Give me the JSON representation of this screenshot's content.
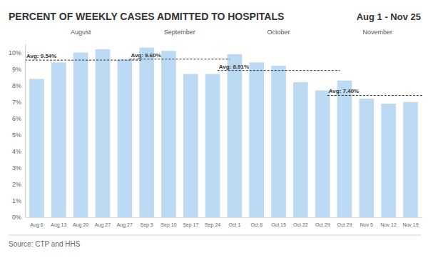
{
  "chart_data": {
    "type": "bar",
    "title": "PERCENT OF WEEKLY CASES ADMITTED TO HOSPITALS",
    "subtitle": "Aug 1 - Nov 25",
    "source": "Source: CTP and HHS",
    "color": "#bcdaf3",
    "grid": false,
    "ylim": [
      0,
      10.5
    ],
    "yticks": [
      {
        "value": 0,
        "label": "0%"
      },
      {
        "value": 1,
        "label": "1%"
      },
      {
        "value": 2,
        "label": "2%"
      },
      {
        "value": 3,
        "label": "3%"
      },
      {
        "value": 4,
        "label": "4%"
      },
      {
        "value": 5,
        "label": "5%"
      },
      {
        "value": 6,
        "label": "6%"
      },
      {
        "value": 7,
        "label": "7%"
      },
      {
        "value": 8,
        "label": "8%"
      },
      {
        "value": 9,
        "label": "9%"
      },
      {
        "value": 10,
        "label": "10%"
      }
    ],
    "groups": [
      {
        "name": "August",
        "average": 9.54,
        "average_label": "Avg: 9.54%",
        "categories": [
          "Aug 6",
          "Aug 13",
          "Aug 20",
          "Aug 27",
          "Aug 27"
        ],
        "values": [
          8.4,
          9.4,
          10.0,
          10.2,
          9.6
        ]
      },
      {
        "name": "September",
        "average": 9.6,
        "average_label": "Avg: 9.60%",
        "categories": [
          "Sep 3",
          "Sep 10",
          "Sep 17",
          "Sep 24"
        ],
        "values": [
          10.3,
          10.1,
          8.7,
          8.7
        ]
      },
      {
        "name": "October",
        "average": 8.91,
        "average_label": "Avg: 8.91%",
        "categories": [
          "Oct 1",
          "Oct 8",
          "Oct 15",
          "Oct 22",
          "Oct 29"
        ],
        "values": [
          9.9,
          9.4,
          9.2,
          8.2,
          7.7
        ]
      },
      {
        "name": "November",
        "average": 7.4,
        "average_label": "Avg: 7.40%",
        "categories": [
          "Oct 29",
          "Nov 5",
          "Nov 12",
          "Nov 19"
        ],
        "values": [
          8.3,
          7.2,
          6.9,
          7.0
        ]
      }
    ]
  }
}
